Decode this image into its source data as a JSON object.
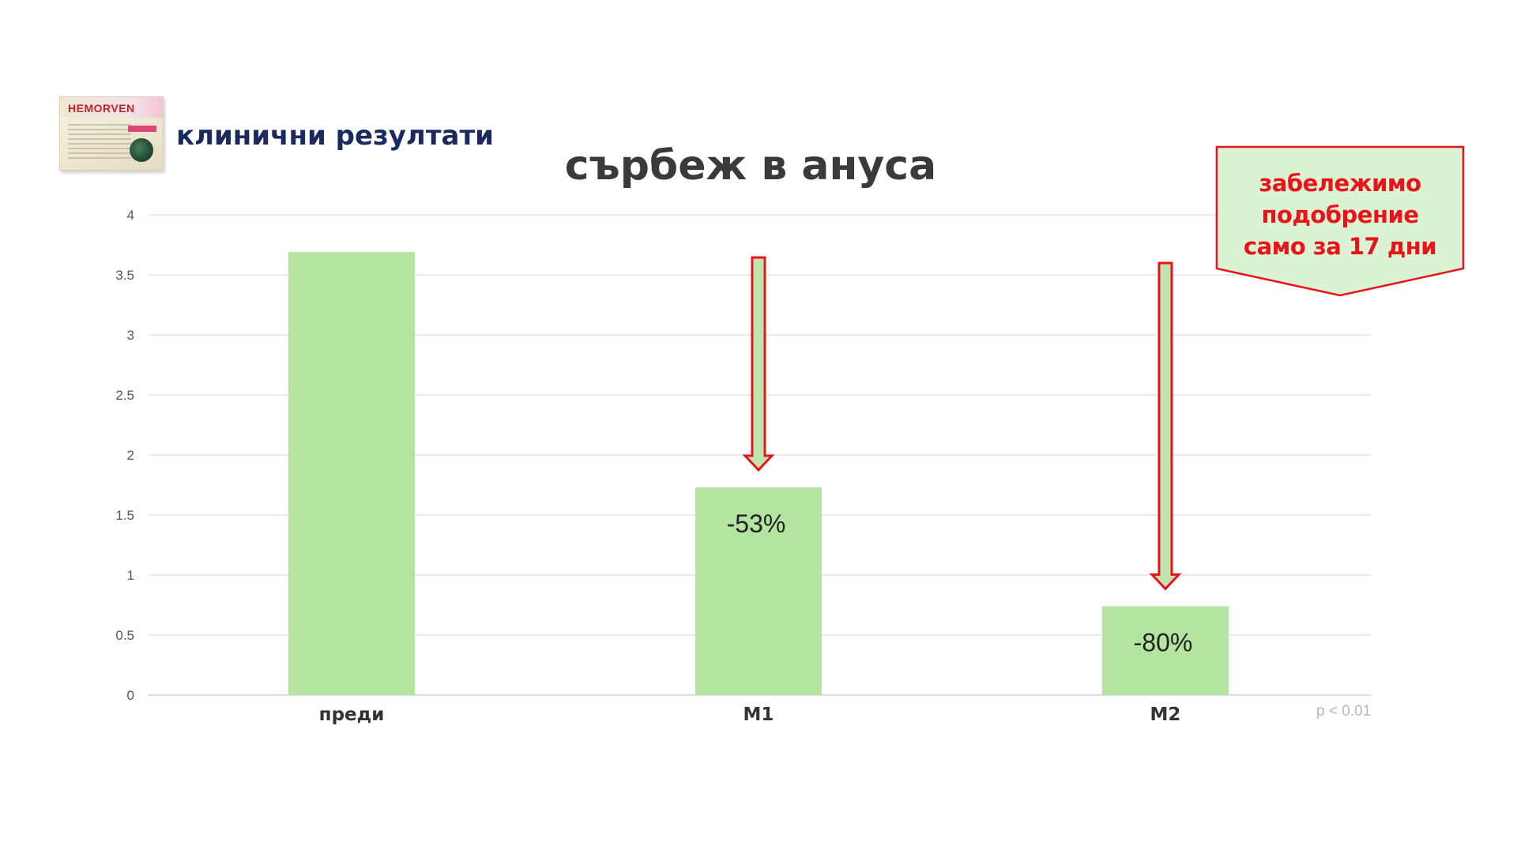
{
  "header": {
    "product_brand": "HEMORVEN",
    "title": "клинични резултати"
  },
  "callout": {
    "lines": [
      "забележимо",
      "подобрение",
      "само за 17 дни"
    ]
  },
  "footnote": "p < 0.01",
  "colors": {
    "bar": "#b3e4a0",
    "arrow_stroke": "#e8141b",
    "arrow_fill": "#bfe4ad",
    "callout_fill": "#daf3d2",
    "header_title": "#1b2a5e"
  },
  "chart_data": {
    "type": "bar",
    "title": "сърбеж в ануса",
    "categories": [
      "преди",
      "M1",
      "M2"
    ],
    "values": [
      3.69,
      1.73,
      0.74
    ],
    "data_labels": [
      "",
      "-53%",
      "-80%"
    ],
    "ylim": [
      0,
      4
    ],
    "yticks": [
      {
        "value": 0,
        "label": "0"
      },
      {
        "value": 0.5,
        "label": "0.5"
      },
      {
        "value": 1,
        "label": "1"
      },
      {
        "value": 1.5,
        "label": "1.5"
      },
      {
        "value": 2,
        "label": "2"
      },
      {
        "value": 2.5,
        "label": "2.5"
      },
      {
        "value": 3,
        "label": "3"
      },
      {
        "value": 3.5,
        "label": "3.5"
      },
      {
        "value": 4,
        "label": "4"
      }
    ],
    "grid": true,
    "xlabel": "",
    "ylabel": ""
  }
}
